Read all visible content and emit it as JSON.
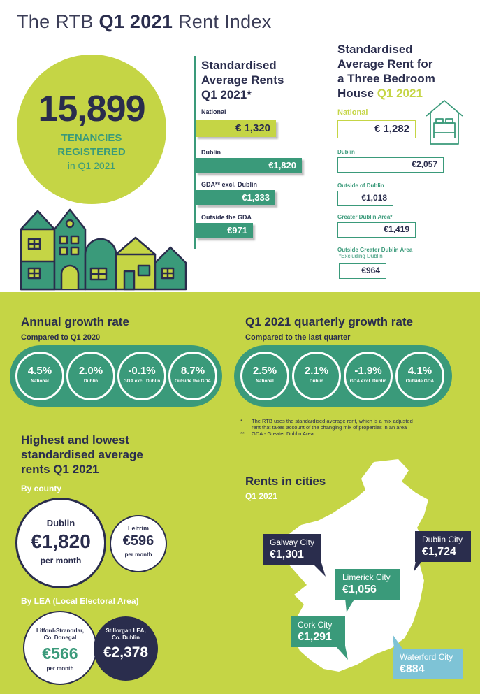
{
  "header": {
    "title_prefix": "The RTB",
    "title_bold": "Q1 2021",
    "title_suffix": "Rent Index"
  },
  "tenancies": {
    "count": "15,899",
    "label_line1": "TENANCIES",
    "label_line2": "REGISTERED",
    "period": "in Q1 2021"
  },
  "standardised_rents": {
    "heading_line1": "Standardised",
    "heading_line2": "Average Rents",
    "heading_line3": "Q1 2021*",
    "national_label": "National",
    "national_value": "€ 1,320",
    "items": [
      {
        "label": "Dublin",
        "value": "€1,820"
      },
      {
        "label": "GDA** excl. Dublin",
        "value": "€1,333"
      },
      {
        "label": "Outside the GDA",
        "value": "€971"
      }
    ]
  },
  "three_bed": {
    "heading_line1": "Standardised",
    "heading_line2": "Average Rent for",
    "heading_line3": "a Three Bedroom",
    "heading_line4": "House",
    "heading_period": "Q1 2021",
    "national_label": "National",
    "national_value": "€ 1,282",
    "items": [
      {
        "label": "Dublin",
        "value": "€2,057"
      },
      {
        "label": "Outside of Dublin",
        "value": "€1,018"
      },
      {
        "label": "Greater Dublin Area*",
        "value": "€1,419"
      },
      {
        "label": "Outside Greater Dublin Area",
        "sublabel": "*Excluding Dublin",
        "value": "€964"
      }
    ]
  },
  "annual_growth": {
    "heading": "Annual growth rate",
    "sub": "Compared to Q1 2020",
    "rings": [
      {
        "value": "4.5%",
        "label": "National"
      },
      {
        "value": "2.0%",
        "label": "Dublin"
      },
      {
        "value": "-0.1%",
        "label": "GDA excl. Dublin"
      },
      {
        "value": "8.7%",
        "label": "Outside the GDA"
      }
    ]
  },
  "quarterly_growth": {
    "heading": "Q1 2021 quarterly growth rate",
    "sub": "Compared to the last quarter",
    "rings": [
      {
        "value": "2.5%",
        "label": "National"
      },
      {
        "value": "2.1%",
        "label": "Dublin"
      },
      {
        "value": "-1.9%",
        "label": "GDA excl. Dublin"
      },
      {
        "value": "4.1%",
        "label": "Outside GDA"
      }
    ]
  },
  "footnotes": {
    "note1_mark": "*",
    "note1_line1": "The RTB uses the standardised average rent, which is a mix adjusted",
    "note1_line2": "rent that takes account of the changing mix of properties in an area",
    "note2_mark": "**",
    "note2_text": "GDA - Greater Dublin Area"
  },
  "high_low": {
    "heading_line1": "Highest and lowest",
    "heading_line2": "standardised average",
    "heading_line3": "rents Q1 2021",
    "by_county": "By county",
    "county_high": {
      "name": "Dublin",
      "value": "€1,820",
      "unit": "per month"
    },
    "county_low": {
      "name": "Leitrim",
      "value": "€596",
      "unit": "per month"
    },
    "by_lea": "By LEA (Local Electoral Area)",
    "lea_low": {
      "name_line1": "Lifford-Stranorlar,",
      "name_line2": "Co. Donegal",
      "value": "€566",
      "unit": "per month"
    },
    "lea_high": {
      "name_line1": "Stillorgan LEA,",
      "name_line2": "Co. Dublin",
      "value": "€2,378"
    }
  },
  "cities": {
    "heading": "Rents in cities",
    "period": "Q1 2021",
    "items": [
      {
        "name": "Galway City",
        "value": "€1,301"
      },
      {
        "name": "Dublin City",
        "value": "€1,724"
      },
      {
        "name": "Limerick City",
        "value": "€1,056"
      },
      {
        "name": "Cork City",
        "value": "€1,291"
      },
      {
        "name": "Waterford City",
        "value": "€884"
      }
    ]
  },
  "colors": {
    "navy": "#2a2d4d",
    "lime": "#c5d545",
    "teal": "#3a9a7a",
    "light_blue": "#7ec3d6"
  }
}
